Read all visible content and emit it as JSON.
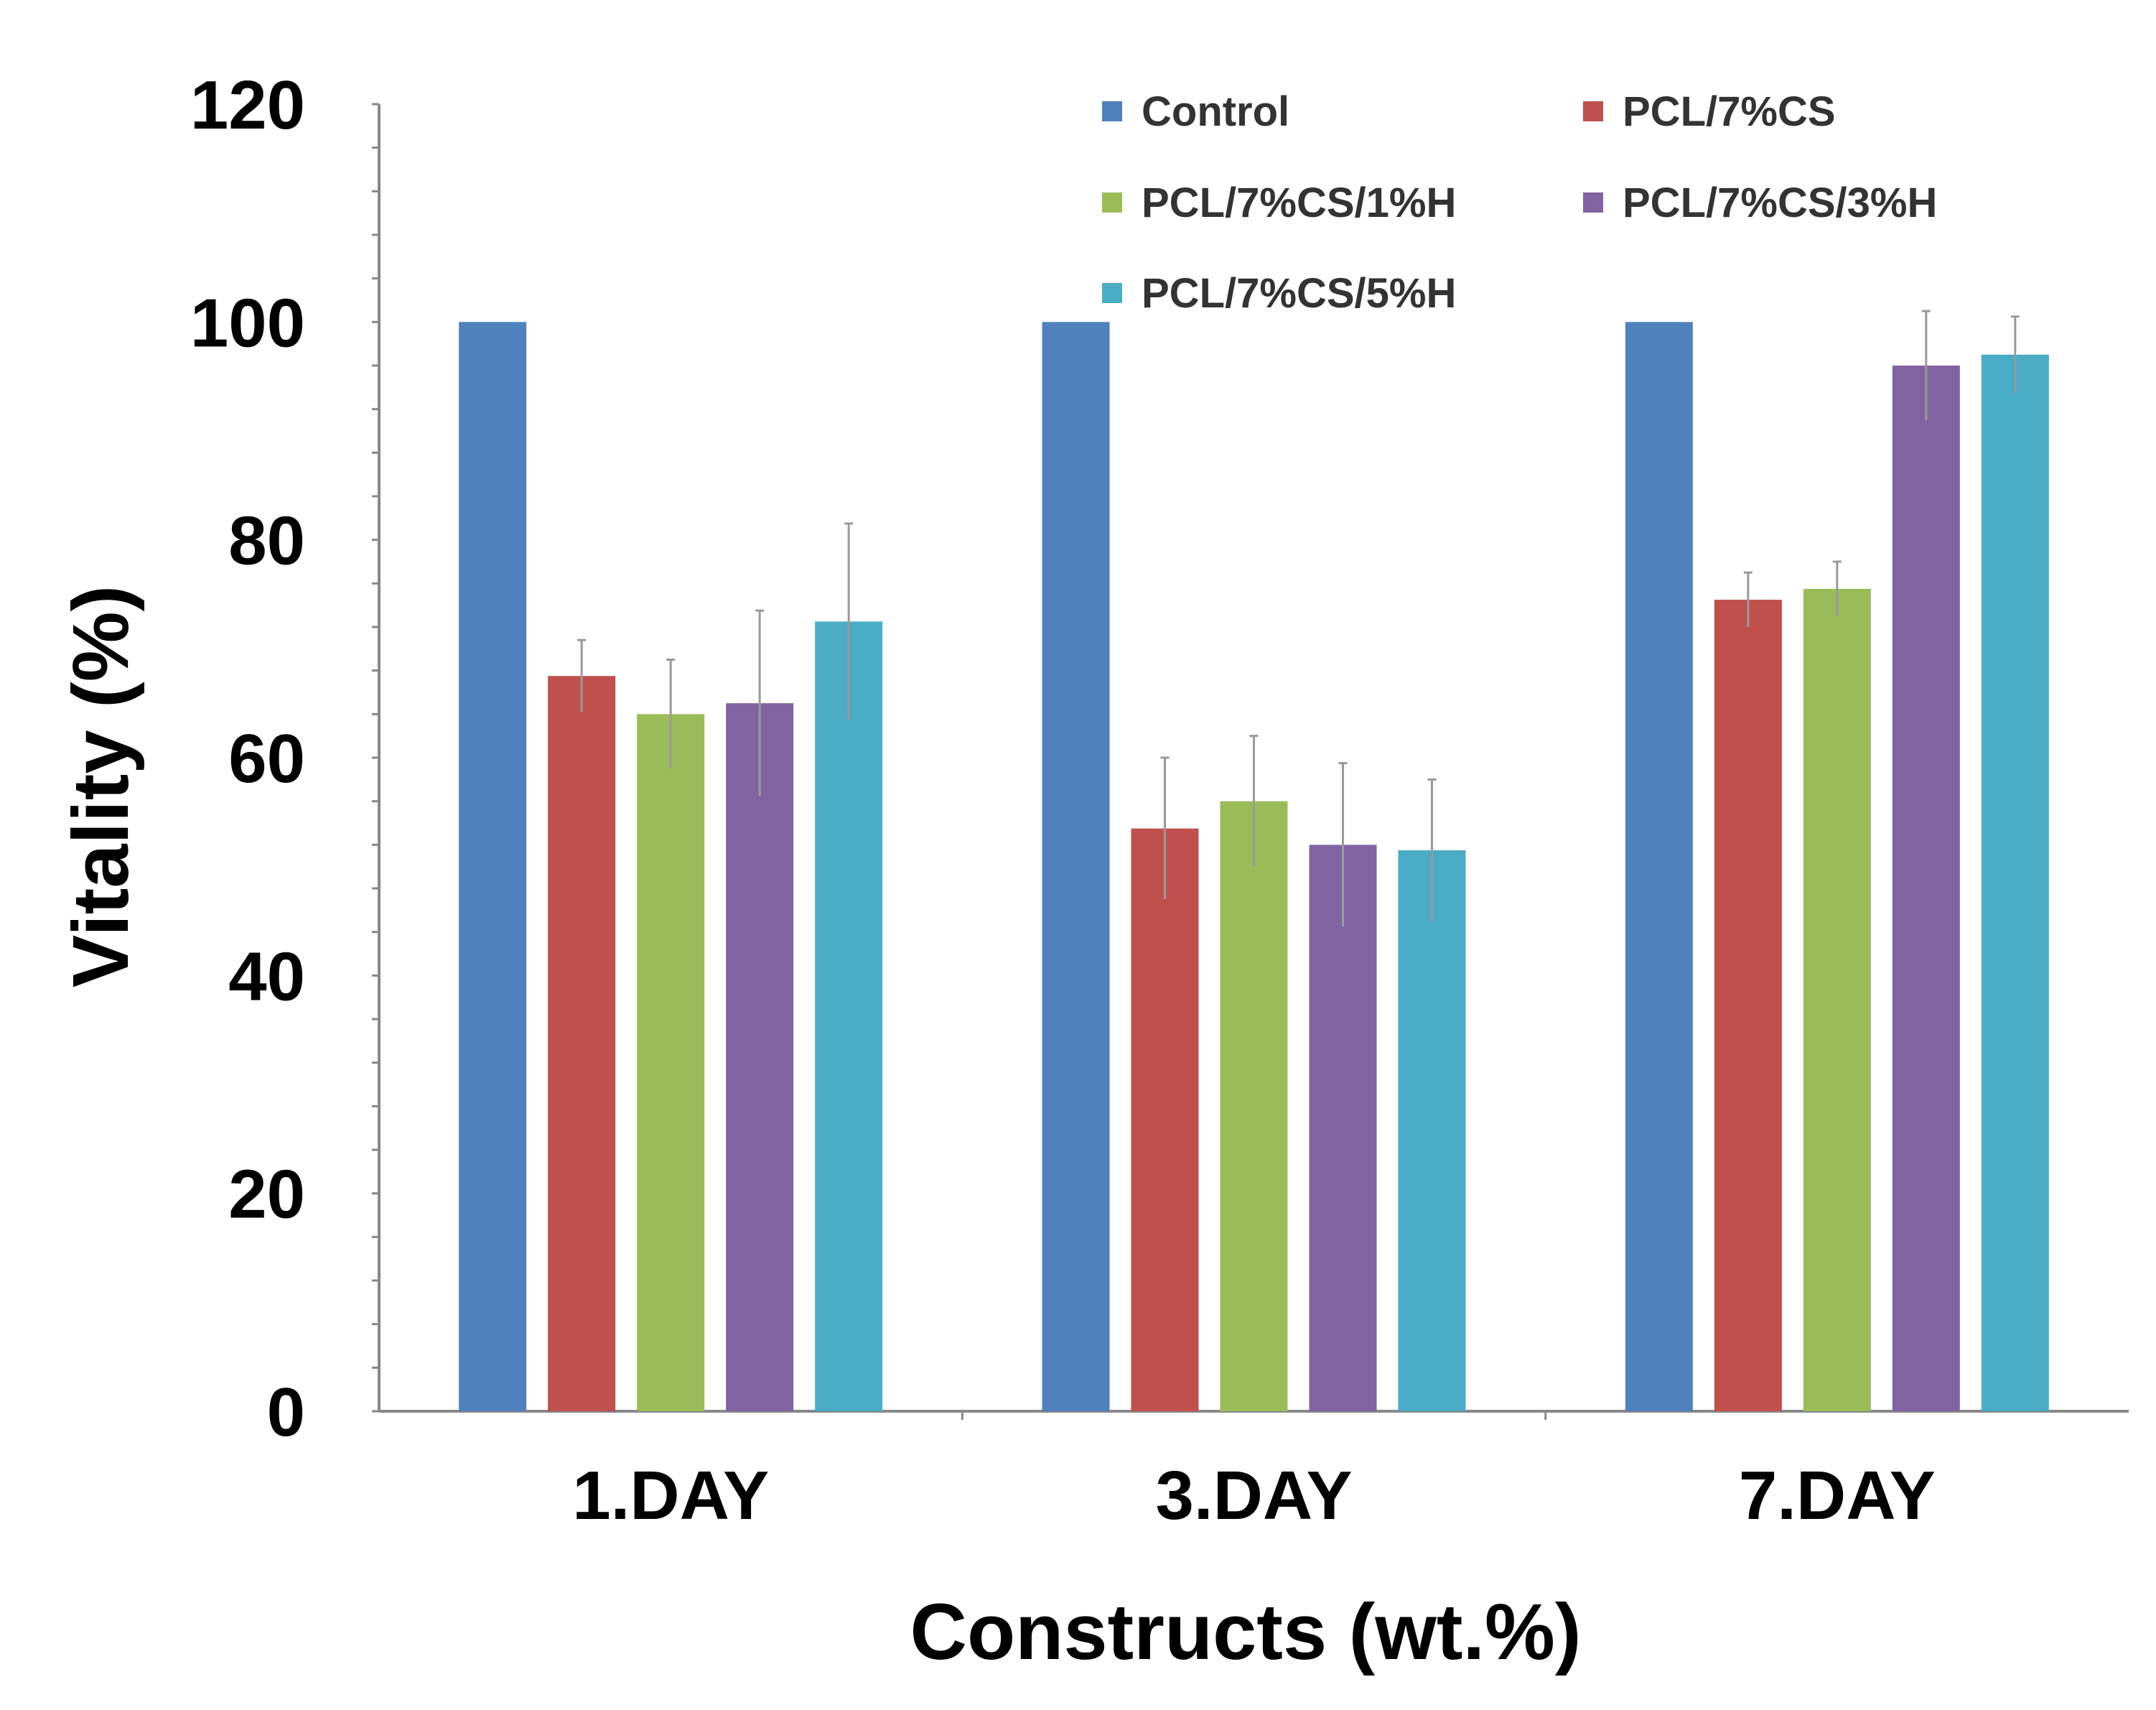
{
  "chart_data": {
    "type": "bar",
    "title": "",
    "xlabel": "Constructs (wt.%)",
    "ylabel": "Vitality (%)",
    "ylim": [
      0,
      120
    ],
    "yticks": [
      "0",
      "20",
      "40",
      "60",
      "80",
      "100",
      "120"
    ],
    "categories": [
      "1.DAY",
      "3.DAY",
      "7.DAY"
    ],
    "legend_position": "top-right",
    "grid": false,
    "series": [
      {
        "name": "Control",
        "color": "#4F81BD",
        "values": [
          100,
          100,
          100
        ],
        "errors": [
          0,
          0,
          0
        ]
      },
      {
        "name": "PCL/7%CS",
        "color": "#C0504D",
        "values": [
          67.5,
          53.5,
          74.5
        ],
        "errors": [
          3.3,
          6.5,
          2.5
        ]
      },
      {
        "name": "PCL/7%CS/1%H",
        "color": "#9BBB59",
        "values": [
          64,
          56,
          75.5
        ],
        "errors": [
          5,
          6,
          2.5
        ]
      },
      {
        "name": "PCL/7%CS/3%H",
        "color": "#8064A2",
        "values": [
          65,
          52,
          96
        ],
        "errors": [
          8.5,
          7.5,
          5
        ]
      },
      {
        "name": "PCL/7%CS/5%H",
        "color": "#4BACC6",
        "values": [
          72.5,
          51.5,
          97
        ],
        "errors": [
          9,
          6.5,
          3.5
        ]
      }
    ]
  }
}
